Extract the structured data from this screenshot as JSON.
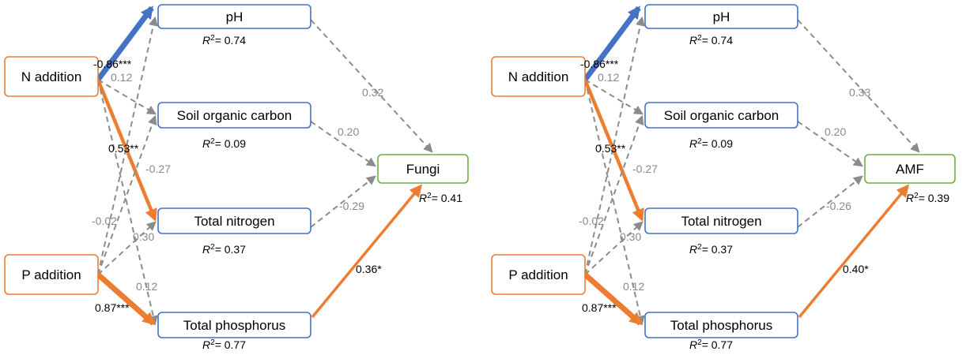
{
  "colors": {
    "predictor_border": "#ED7D31",
    "mediator_border": "#4472C4",
    "response_border": "#70AD47",
    "positive_path": "#ED7D31",
    "negative_path": "#4472C4",
    "nonsig_path": "#8C8C8C"
  },
  "panels": [
    {
      "predictors": [
        "N addition",
        "P addition"
      ],
      "mediators": [
        {
          "label": "pH",
          "r2": "= 0.74"
        },
        {
          "label": "Soil organic carbon",
          "r2": "= 0.09"
        },
        {
          "label": "Total nitrogen",
          "r2": "= 0.37"
        },
        {
          "label": "Total phosphorus",
          "r2": "= 0.77"
        }
      ],
      "response": {
        "label": "Fungi",
        "r2": "= 0.41"
      },
      "paths": [
        {
          "from": "N addition",
          "to": "pH",
          "coef": "-0.86***",
          "significant": true,
          "sign": "negative",
          "width": 7
        },
        {
          "from": "N addition",
          "to": "Soil organic carbon",
          "coef": "0.12",
          "significant": false
        },
        {
          "from": "N addition",
          "to": "Total nitrogen",
          "coef": "0.53**",
          "significant": true,
          "sign": "positive",
          "width": 4.5
        },
        {
          "from": "N addition",
          "to": "Total phosphorus",
          "coef": "0.12",
          "significant": false
        },
        {
          "from": "P addition",
          "to": "pH",
          "coef": "-0.02",
          "significant": false
        },
        {
          "from": "P addition",
          "to": "Soil organic carbon",
          "coef": "-0.27",
          "significant": false
        },
        {
          "from": "P addition",
          "to": "Total nitrogen",
          "coef": "0.30",
          "significant": false
        },
        {
          "from": "P addition",
          "to": "Total phosphorus",
          "coef": "0.87***",
          "significant": true,
          "sign": "positive",
          "width": 7
        },
        {
          "from": "pH",
          "to": "Fungi",
          "coef": "0.32",
          "significant": false
        },
        {
          "from": "Soil organic carbon",
          "to": "Fungi",
          "coef": "0.20",
          "significant": false
        },
        {
          "from": "Total nitrogen",
          "to": "Fungi",
          "coef": "-0.29",
          "significant": false
        },
        {
          "from": "Total phosphorus",
          "to": "Fungi",
          "coef": "0.36*",
          "significant": true,
          "sign": "positive",
          "width": 3.5
        }
      ]
    },
    {
      "predictors": [
        "N addition",
        "P addition"
      ],
      "mediators": [
        {
          "label": "pH",
          "r2": "= 0.74"
        },
        {
          "label": "Soil organic carbon",
          "r2": "= 0.09"
        },
        {
          "label": "Total nitrogen",
          "r2": "= 0.37"
        },
        {
          "label": "Total phosphorus",
          "r2": "= 0.77"
        }
      ],
      "response": {
        "label": "AMF",
        "r2": "= 0.39"
      },
      "paths": [
        {
          "from": "N addition",
          "to": "pH",
          "coef": "-0.86***",
          "significant": true,
          "sign": "negative",
          "width": 7
        },
        {
          "from": "N addition",
          "to": "Soil organic carbon",
          "coef": "0.12",
          "significant": false
        },
        {
          "from": "N addition",
          "to": "Total nitrogen",
          "coef": "0.53**",
          "significant": true,
          "sign": "positive",
          "width": 4.5
        },
        {
          "from": "N addition",
          "to": "Total phosphorus",
          "coef": "0.12",
          "significant": false
        },
        {
          "from": "P addition",
          "to": "pH",
          "coef": "-0.02",
          "significant": false
        },
        {
          "from": "P addition",
          "to": "Soil organic carbon",
          "coef": "-0.27",
          "significant": false
        },
        {
          "from": "P addition",
          "to": "Total nitrogen",
          "coef": "0.30",
          "significant": false
        },
        {
          "from": "P addition",
          "to": "Total phosphorus",
          "coef": "0.87***",
          "significant": true,
          "sign": "positive",
          "width": 7
        },
        {
          "from": "pH",
          "to": "AMF",
          "coef": "0.33",
          "significant": false
        },
        {
          "from": "Soil organic carbon",
          "to": "AMF",
          "coef": "0.20",
          "significant": false
        },
        {
          "from": "Total nitrogen",
          "to": "AMF",
          "coef": "-0.26",
          "significant": false
        },
        {
          "from": "Total phosphorus",
          "to": "AMF",
          "coef": "0.40*",
          "significant": true,
          "sign": "positive",
          "width": 3.5
        }
      ]
    }
  ]
}
